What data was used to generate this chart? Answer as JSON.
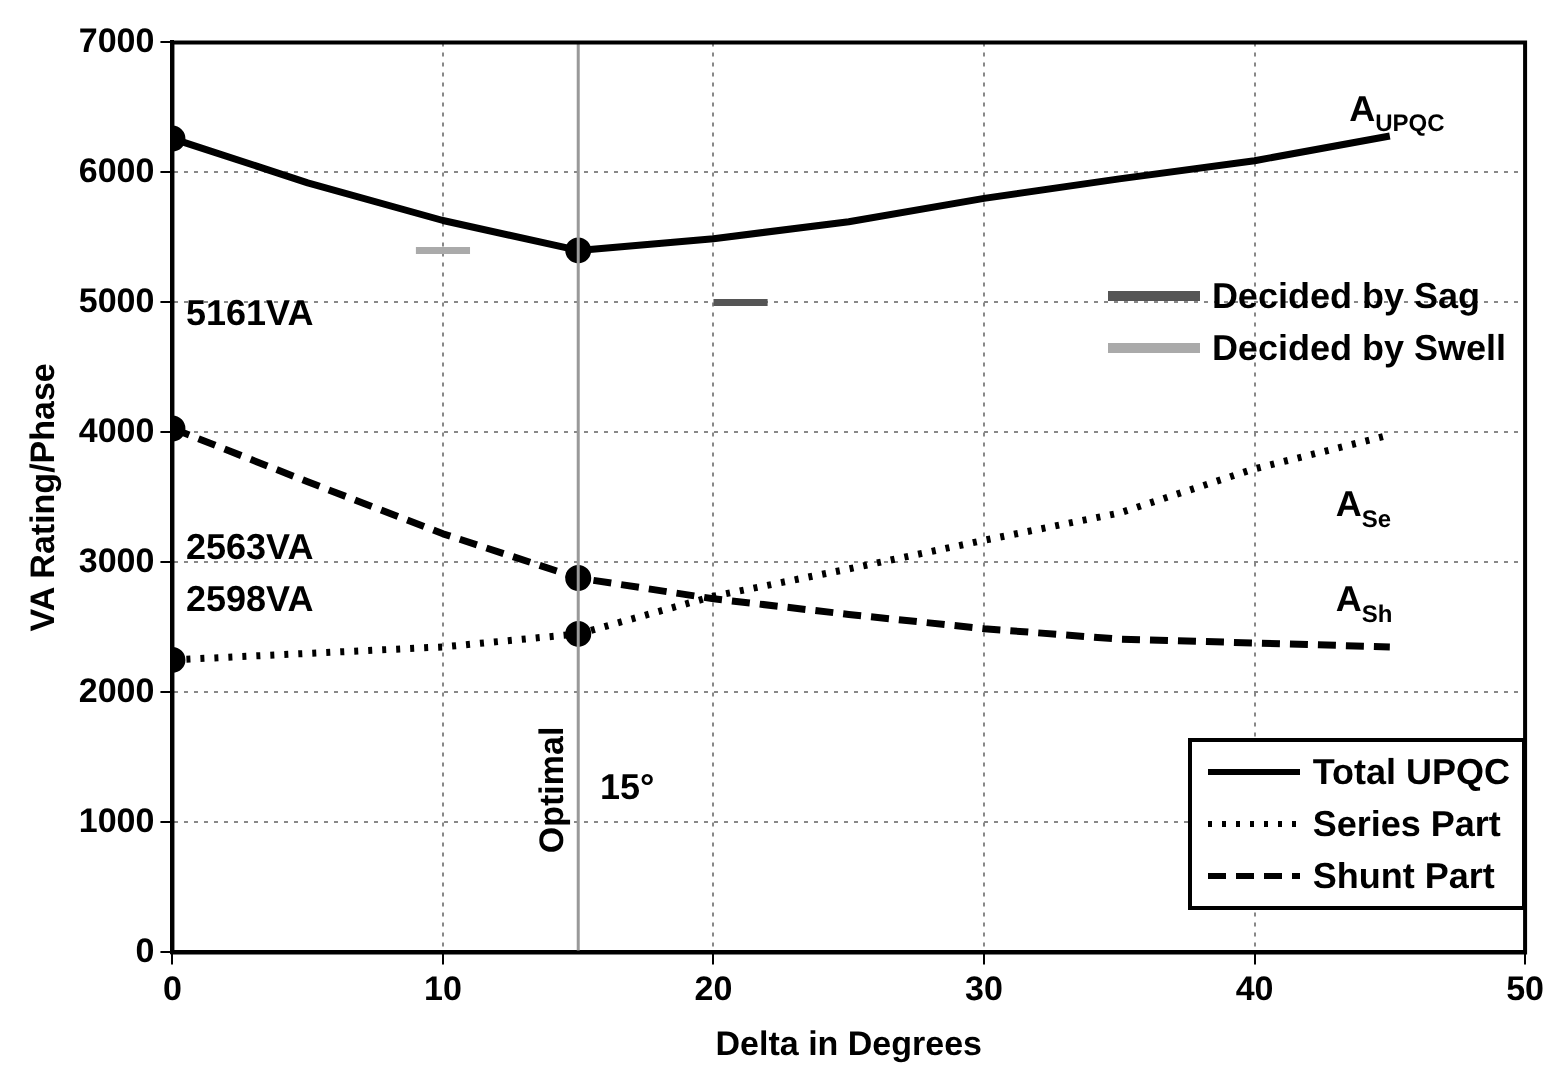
{
  "chart_data": {
    "type": "line",
    "xlabel": "Delta in Degrees",
    "ylabel": "VA Rating/Phase",
    "xlim": [
      0,
      50
    ],
    "xticks": [
      0,
      10,
      20,
      30,
      40,
      50
    ],
    "ylim": [
      0,
      7000
    ],
    "yticks": [
      0,
      1000,
      2000,
      3000,
      4000,
      5000,
      6000,
      7000
    ],
    "grid": true,
    "legend": "bottom right",
    "marker": "none",
    "series": [
      {
        "name": "Total UPQC",
        "color": "#000000",
        "line_style": "solid",
        "x": [
          0,
          5,
          10,
          15,
          20,
          25,
          30,
          35,
          40,
          45
        ],
        "values": [
          6260,
          5920,
          5630,
          5400,
          5490,
          5620,
          5800,
          5950,
          6090,
          6280
        ]
      },
      {
        "name": "Series Part",
        "color": "#000000",
        "line_style": "dotted",
        "x": [
          0,
          5,
          10,
          15,
          20,
          25,
          30,
          35,
          40,
          45
        ],
        "values": [
          2250,
          2300,
          2350,
          2450,
          2740,
          2950,
          3170,
          3380,
          3720,
          3980
        ]
      },
      {
        "name": "Shunt Part",
        "color": "#000000",
        "line_style": "dashed",
        "x": [
          0,
          5,
          10,
          15,
          20,
          25,
          30,
          35,
          40,
          45
        ],
        "values": [
          4030,
          3620,
          3220,
          2880,
          2720,
          2600,
          2490,
          2410,
          2380,
          2350
        ]
      },
      {
        "name": "Decided by Sag",
        "color": "#555555",
        "line_style": "solid",
        "x": [
          20,
          22
        ],
        "values": [
          5000,
          5000
        ]
      },
      {
        "name": "Decided by Swell",
        "color": "#aaaaaa",
        "line_style": "solid",
        "x": [
          9,
          11
        ],
        "values": [
          5400,
          5400
        ]
      },
      {
        "type": "scatter",
        "color": "#000000",
        "marker": "circle",
        "x": [
          0,
          15,
          0,
          15,
          0,
          15
        ],
        "values": [
          6260,
          5400,
          2250,
          2450,
          4030,
          2880
        ]
      }
    ],
    "ref_lines": [
      {
        "axis": "x",
        "value": 15,
        "label": "Optimal",
        "color": "#999999",
        "line_style": "solid"
      }
    ],
    "annotations": [
      "5161VA",
      "2563VA",
      "2598VA",
      "A$_{UPQC}$",
      "A$_{Se}$",
      "A$_{Sh}$",
      "15°"
    ]
  }
}
